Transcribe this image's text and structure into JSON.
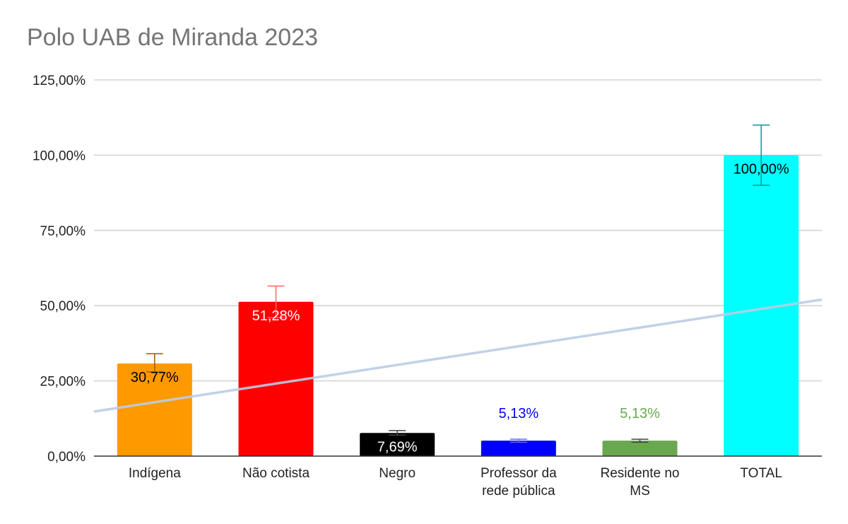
{
  "chart_data": {
    "type": "bar",
    "title": "Polo UAB de Miranda 2023",
    "xlabel": "",
    "ylabel": "",
    "ylim": [
      0,
      125
    ],
    "yticks": [
      "0,00%",
      "25,00%",
      "50,00%",
      "75,00%",
      "100,00%",
      "125,00%"
    ],
    "categories": [
      [
        "Indígena"
      ],
      [
        "Não cotista"
      ],
      [
        "Negro"
      ],
      [
        "Professor da",
        "rede pública"
      ],
      [
        "Residente no",
        "MS"
      ],
      [
        "TOTAL"
      ]
    ],
    "values": [
      30.77,
      51.28,
      7.69,
      5.13,
      5.13,
      100.0
    ],
    "data_labels": [
      "30,77%",
      "51,28%",
      "7,69%",
      "5,13%",
      "5,13%",
      "100,00%"
    ],
    "error_bars": [
      {
        "low": 28.0,
        "high": 34.0
      },
      {
        "low": 46.0,
        "high": 56.5
      },
      {
        "low": 7.0,
        "high": 8.5
      },
      {
        "low": 4.6,
        "high": 5.6
      },
      {
        "low": 4.6,
        "high": 5.6
      },
      {
        "low": 90.0,
        "high": 110.0
      }
    ],
    "colors": [
      "#ff9900",
      "#ff0000",
      "#000000",
      "#0000ff",
      "#6aa84f",
      "#00ffff"
    ],
    "error_colors": [
      "#a05a00",
      "#ff6666",
      "#444444",
      "#6666ff",
      "#444444",
      "#009999"
    ],
    "label_colors": [
      "#000000",
      "#ffffff",
      "#ffffff",
      "#0000ff",
      "#6aa84f",
      "#000000"
    ],
    "label_position": [
      "inside",
      "inside",
      "inside",
      "above",
      "above",
      "inside"
    ],
    "trendline": {
      "type": "linear",
      "start": 14.8,
      "end": 52.0,
      "color": "#b9cde5"
    },
    "grid": true,
    "legend": "none"
  }
}
